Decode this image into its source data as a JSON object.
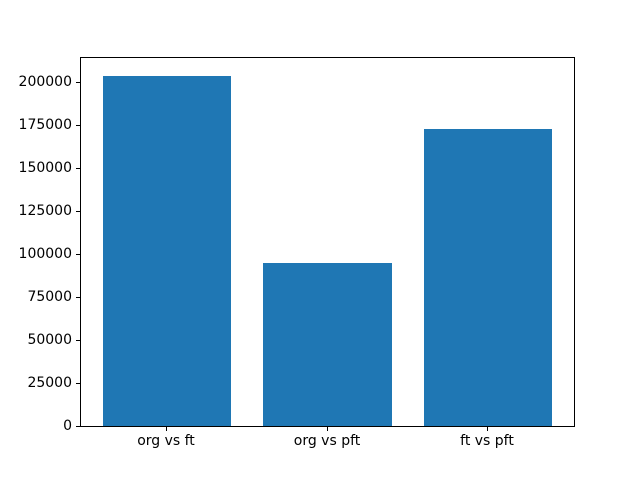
{
  "chart_data": {
    "type": "bar",
    "title": "",
    "xlabel": "",
    "ylabel": "",
    "categories": [
      "org vs ft",
      "org vs pft",
      "ft vs pft"
    ],
    "values": [
      204000,
      95000,
      173000
    ],
    "yticks": [
      0,
      25000,
      50000,
      75000,
      100000,
      125000,
      150000,
      175000,
      200000
    ],
    "ylim": [
      0,
      214200
    ],
    "bar_color": "#1f77b4",
    "grid": false,
    "legend": null,
    "background_color": "#ffffff",
    "spine_color": "#000000",
    "text_color": "#000000"
  }
}
